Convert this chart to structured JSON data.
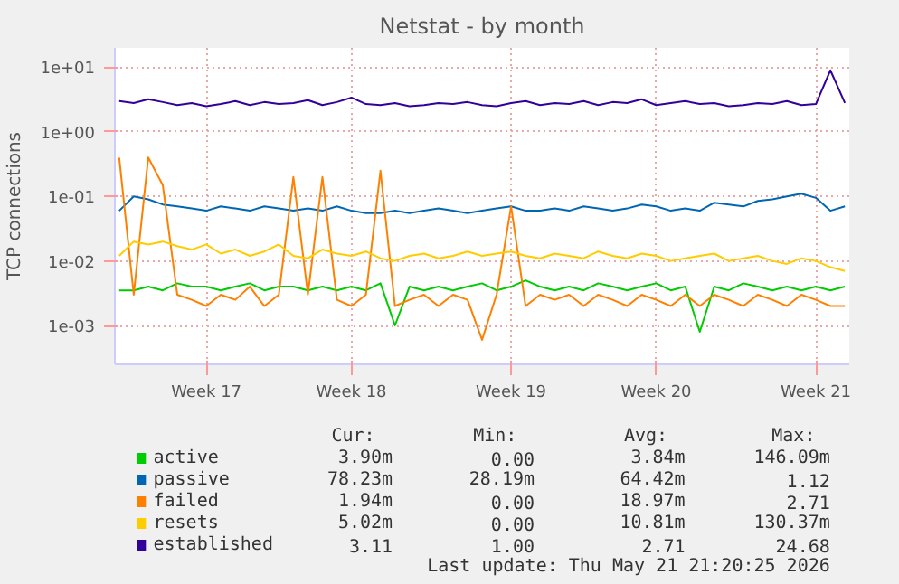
{
  "chart_data": {
    "type": "line",
    "title": "Netstat - by month",
    "ylabel": "TCP connections",
    "categories": [
      null,
      null,
      null,
      null,
      null,
      null,
      "Week 17",
      null,
      null,
      null,
      null,
      null,
      null,
      null,
      null,
      null,
      "Week 18",
      null,
      null,
      null,
      null,
      null,
      null,
      null,
      null,
      null,
      null,
      "Week 19",
      null,
      null,
      null,
      null,
      null,
      null,
      null,
      null,
      null,
      "Week 20",
      null,
      null,
      null,
      null,
      null,
      null,
      null,
      null,
      null,
      null,
      "Week 21",
      null,
      null
    ],
    "series": [
      {
        "name": "active",
        "color": "#00cc00",
        "values": [
          0.0035,
          0.0035,
          0.004,
          0.0035,
          0.0045,
          0.004,
          0.004,
          0.0035,
          0.004,
          0.0045,
          0.0035,
          0.004,
          0.004,
          0.0035,
          0.004,
          0.0035,
          0.004,
          0.0035,
          0.0045,
          0.001,
          0.004,
          0.0035,
          0.004,
          0.0035,
          0.004,
          0.0045,
          0.0035,
          0.004,
          0.005,
          0.004,
          0.0035,
          0.004,
          0.0035,
          0.0045,
          0.004,
          0.0035,
          0.004,
          0.0045,
          0.0035,
          0.004,
          0.0008,
          0.004,
          0.0035,
          0.0045,
          0.004,
          0.0035,
          0.004,
          0.0035,
          0.004,
          0.0035,
          0.004
        ]
      },
      {
        "name": "passive",
        "color": "#0066b3",
        "values": [
          0.06,
          0.1,
          0.09,
          0.075,
          0.07,
          0.065,
          0.06,
          0.07,
          0.065,
          0.06,
          0.07,
          0.065,
          0.06,
          0.065,
          0.06,
          0.07,
          0.06,
          0.055,
          0.055,
          0.06,
          0.055,
          0.06,
          0.065,
          0.06,
          0.055,
          0.06,
          0.065,
          0.07,
          0.06,
          0.06,
          0.065,
          0.06,
          0.07,
          0.065,
          0.06,
          0.065,
          0.075,
          0.07,
          0.06,
          0.065,
          0.06,
          0.08,
          0.075,
          0.07,
          0.085,
          0.09,
          0.1,
          0.11,
          0.095,
          0.06,
          0.07
        ]
      },
      {
        "name": "failed",
        "color": "#ff8000",
        "values": [
          0.4,
          0.003,
          0.4,
          0.15,
          0.003,
          0.0025,
          0.002,
          0.003,
          0.0025,
          0.004,
          0.002,
          0.003,
          0.2,
          0.003,
          0.2,
          0.0025,
          0.002,
          0.003,
          0.25,
          0.002,
          0.0025,
          0.003,
          0.002,
          0.003,
          0.0025,
          0.0006,
          0.003,
          0.07,
          0.002,
          0.003,
          0.0025,
          0.003,
          0.002,
          0.003,
          0.0025,
          0.002,
          0.003,
          0.0025,
          0.002,
          0.003,
          0.002,
          0.003,
          0.0025,
          0.002,
          0.003,
          0.0025,
          0.002,
          0.003,
          0.0025,
          0.002,
          0.002
        ]
      },
      {
        "name": "resets",
        "color": "#ffcc00",
        "values": [
          0.012,
          0.02,
          0.018,
          0.02,
          0.017,
          0.015,
          0.018,
          0.013,
          0.015,
          0.012,
          0.014,
          0.018,
          0.012,
          0.011,
          0.015,
          0.013,
          0.012,
          0.014,
          0.011,
          0.01,
          0.012,
          0.013,
          0.011,
          0.012,
          0.014,
          0.012,
          0.013,
          0.014,
          0.012,
          0.011,
          0.013,
          0.012,
          0.011,
          0.014,
          0.012,
          0.011,
          0.013,
          0.012,
          0.01,
          0.011,
          0.012,
          0.013,
          0.01,
          0.011,
          0.012,
          0.01,
          0.009,
          0.011,
          0.01,
          0.008,
          0.007
        ]
      },
      {
        "name": "established",
        "color": "#330099",
        "values": [
          3.0,
          2.8,
          3.2,
          2.9,
          2.6,
          2.8,
          2.5,
          2.7,
          3.0,
          2.6,
          2.9,
          2.7,
          2.8,
          3.1,
          2.6,
          2.9,
          3.4,
          2.7,
          2.6,
          2.8,
          2.5,
          2.6,
          2.8,
          2.7,
          2.9,
          2.6,
          2.5,
          2.8,
          3.0,
          2.6,
          2.8,
          2.7,
          3.0,
          2.6,
          2.9,
          2.8,
          3.2,
          2.6,
          2.8,
          3.0,
          2.7,
          2.8,
          2.5,
          2.6,
          2.8,
          2.7,
          3.0,
          2.6,
          2.7,
          9.0,
          2.8
        ]
      }
    ],
    "log": true,
    "ylim": [
      0.00025,
      20
    ],
    "yticks": [
      {
        "value": 0.001,
        "label": "1e-03"
      },
      {
        "value": 0.01,
        "label": "1e-02"
      },
      {
        "value": 0.1,
        "label": "1e-01"
      },
      {
        "value": 1,
        "label": "1e+00"
      },
      {
        "value": 10,
        "label": "1e+01"
      }
    ],
    "grid": true,
    "legend": "bottom",
    "annotations": [
      "Cur:",
      "Min:",
      "Avg:",
      "Max:",
      "3.90m",
      "0.00",
      "3.84m",
      "146.09m",
      "78.23m",
      "28.19m",
      "64.42m",
      "1.12",
      "1.94m",
      "0.00",
      "18.97m",
      "2.71",
      "5.02m",
      "0.00",
      "10.81m",
      "130.37m",
      "3.11",
      "1.00",
      "2.71",
      "24.68",
      "Last update: Thu May 21 21:20:25 2026"
    ]
  }
}
